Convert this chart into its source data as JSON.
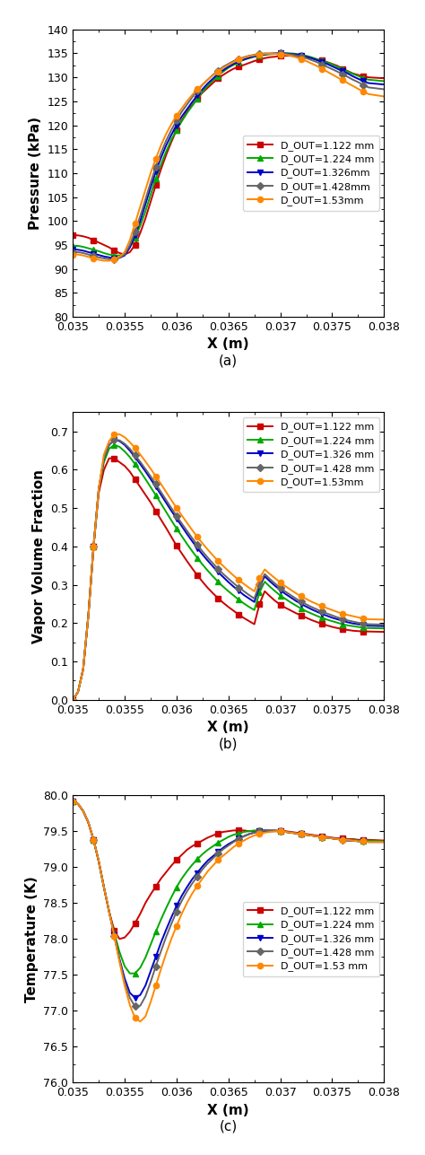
{
  "xlim": [
    0.035,
    0.038
  ],
  "xticks": [
    0.035,
    0.0355,
    0.036,
    0.0365,
    0.037,
    0.0375,
    0.038
  ],
  "xlabel": "X (m)",
  "colors": [
    "#cc0000",
    "#00aa00",
    "#0000cc",
    "#666666",
    "#ff8800"
  ],
  "markers": [
    "s",
    "^",
    "v",
    "D",
    "o"
  ],
  "plot_a_ylabel": "Pressure (kPa)",
  "plot_a_ylim": [
    80,
    140
  ],
  "plot_a_yticks": [
    80,
    85,
    90,
    95,
    100,
    105,
    110,
    115,
    120,
    125,
    130,
    135,
    140
  ],
  "plot_a_label": "(a)",
  "plot_b_ylabel": "Vapor Volume Fraction",
  "plot_b_ylim": [
    0,
    0.75
  ],
  "plot_b_yticks": [
    0,
    0.1,
    0.2,
    0.3,
    0.4,
    0.5,
    0.6,
    0.7
  ],
  "plot_b_label": "(b)",
  "plot_c_ylabel": "Temperature (K)",
  "plot_c_ylim": [
    76,
    80
  ],
  "plot_c_yticks": [
    76,
    76.5,
    77,
    77.5,
    78,
    78.5,
    79,
    79.5,
    80
  ],
  "plot_c_label": "(c)",
  "legend_labels_a": [
    "D_OUT=1.122 mm",
    "D_OUT=1.224 mm",
    "D_OUT=1.326mm",
    "D_OUT=1.428mm",
    "D_OUT=1.53mm"
  ],
  "legend_labels_b": [
    "D_OUT=1.122 mm",
    "D_OUT=1.224 mm",
    "D_OUT=1.326 mm",
    "D_OUT=1.428 mm",
    "D_OUT=1.53mm"
  ],
  "legend_labels_c": [
    "D_OUT=1.122 mm",
    "D_OUT=1.224 mm",
    "D_OUT=1.326 mm",
    "D_OUT=1.428 mm",
    "D_OUT=1.53 mm"
  ],
  "x_common": [
    0.035,
    0.03505,
    0.0351,
    0.03515,
    0.0352,
    0.03525,
    0.0353,
    0.03535,
    0.0354,
    0.03545,
    0.0355,
    0.03555,
    0.0356,
    0.03565,
    0.0357,
    0.03575,
    0.0358,
    0.03585,
    0.0359,
    0.03595,
    0.036,
    0.03605,
    0.0361,
    0.03615,
    0.0362,
    0.03625,
    0.0363,
    0.03635,
    0.0364,
    0.03645,
    0.0365,
    0.03655,
    0.0366,
    0.03665,
    0.0367,
    0.03675,
    0.0368,
    0.03685,
    0.0369,
    0.03695,
    0.037,
    0.03705,
    0.0371,
    0.03715,
    0.0372,
    0.03725,
    0.0373,
    0.03735,
    0.0374,
    0.03745,
    0.0375,
    0.03755,
    0.0376,
    0.03765,
    0.0377,
    0.03775,
    0.0378,
    0.03785,
    0.038
  ],
  "pa_y1": [
    97.0,
    97.0,
    96.8,
    96.5,
    96.0,
    95.5,
    95.0,
    94.5,
    93.8,
    93.3,
    93.0,
    93.5,
    95.0,
    97.5,
    100.5,
    104.0,
    107.5,
    110.8,
    113.8,
    116.5,
    119.0,
    121.0,
    122.8,
    124.2,
    125.5,
    126.8,
    127.8,
    128.8,
    129.8,
    130.5,
    131.2,
    131.8,
    132.2,
    132.6,
    133.0,
    133.4,
    133.7,
    134.0,
    134.2,
    134.3,
    134.5,
    134.5,
    134.5,
    134.4,
    134.3,
    134.2,
    134.0,
    133.8,
    133.5,
    133.2,
    132.8,
    132.4,
    131.8,
    131.3,
    130.8,
    130.5,
    130.2,
    130.0,
    129.8
  ],
  "pa_y2": [
    94.8,
    94.8,
    94.6,
    94.3,
    94.0,
    93.7,
    93.3,
    93.0,
    92.8,
    92.8,
    93.0,
    94.5,
    96.5,
    99.0,
    102.0,
    105.5,
    108.8,
    111.8,
    114.5,
    117.0,
    119.0,
    120.8,
    122.5,
    124.0,
    125.5,
    127.0,
    128.2,
    129.3,
    130.3,
    131.2,
    132.0,
    132.6,
    133.2,
    133.7,
    134.0,
    134.3,
    134.5,
    134.7,
    134.8,
    134.9,
    135.0,
    135.0,
    135.0,
    134.9,
    134.7,
    134.5,
    134.2,
    133.8,
    133.5,
    133.1,
    132.7,
    132.2,
    131.7,
    131.2,
    130.7,
    130.3,
    129.8,
    129.5,
    129.2
  ],
  "pa_y3": [
    94.0,
    94.0,
    93.8,
    93.5,
    93.2,
    92.9,
    92.6,
    92.4,
    92.2,
    92.3,
    92.8,
    94.5,
    97.0,
    100.0,
    103.5,
    107.0,
    110.3,
    113.2,
    115.8,
    118.0,
    120.0,
    121.8,
    123.3,
    124.8,
    126.2,
    127.5,
    128.7,
    129.7,
    130.7,
    131.5,
    132.2,
    132.8,
    133.3,
    133.7,
    134.1,
    134.4,
    134.6,
    134.8,
    134.9,
    135.0,
    135.0,
    135.0,
    134.9,
    134.8,
    134.6,
    134.3,
    134.0,
    133.6,
    133.2,
    132.8,
    132.3,
    131.8,
    131.3,
    130.8,
    130.2,
    129.7,
    129.2,
    128.8,
    128.5
  ],
  "pa_y4": [
    93.5,
    93.5,
    93.3,
    93.0,
    92.7,
    92.4,
    92.2,
    92.0,
    92.0,
    92.3,
    93.0,
    95.0,
    97.8,
    101.0,
    104.5,
    108.0,
    111.3,
    114.2,
    116.8,
    119.0,
    121.0,
    122.8,
    124.3,
    125.8,
    127.2,
    128.4,
    129.5,
    130.5,
    131.4,
    132.2,
    132.8,
    133.4,
    133.8,
    134.2,
    134.5,
    134.7,
    134.9,
    135.0,
    135.0,
    135.0,
    135.0,
    134.9,
    134.8,
    134.6,
    134.3,
    134.0,
    133.6,
    133.2,
    132.7,
    132.2,
    131.7,
    131.2,
    130.6,
    130.1,
    129.5,
    129.0,
    128.4,
    127.9,
    127.5
  ],
  "pa_y5": [
    93.0,
    93.0,
    92.8,
    92.5,
    92.2,
    91.9,
    91.7,
    91.7,
    92.0,
    92.5,
    93.5,
    96.0,
    99.5,
    103.0,
    106.5,
    110.0,
    113.0,
    115.8,
    118.2,
    120.2,
    122.0,
    123.5,
    125.0,
    126.3,
    127.5,
    128.5,
    129.5,
    130.4,
    131.2,
    132.0,
    132.6,
    133.2,
    133.7,
    134.1,
    134.4,
    134.6,
    134.8,
    134.9,
    134.9,
    134.9,
    134.8,
    134.7,
    134.5,
    134.2,
    133.8,
    133.4,
    132.9,
    132.4,
    131.8,
    131.2,
    130.6,
    130.0,
    129.4,
    128.8,
    128.2,
    127.6,
    127.0,
    126.5,
    126.0
  ],
  "pb_y1": [
    0.0,
    0.02,
    0.08,
    0.22,
    0.4,
    0.54,
    0.6,
    0.63,
    0.63,
    0.62,
    0.61,
    0.595,
    0.575,
    0.555,
    0.535,
    0.515,
    0.492,
    0.47,
    0.448,
    0.425,
    0.402,
    0.382,
    0.362,
    0.343,
    0.325,
    0.308,
    0.292,
    0.278,
    0.265,
    0.253,
    0.242,
    0.232,
    0.222,
    0.213,
    0.205,
    0.197,
    0.25,
    0.283,
    0.27,
    0.258,
    0.248,
    0.24,
    0.233,
    0.226,
    0.22,
    0.214,
    0.208,
    0.203,
    0.198,
    0.194,
    0.19,
    0.187,
    0.184,
    0.182,
    0.18,
    0.179,
    0.178,
    0.178,
    0.177
  ],
  "pb_y2": [
    0.0,
    0.02,
    0.08,
    0.22,
    0.4,
    0.55,
    0.62,
    0.655,
    0.665,
    0.66,
    0.648,
    0.633,
    0.615,
    0.596,
    0.576,
    0.555,
    0.534,
    0.512,
    0.49,
    0.468,
    0.447,
    0.427,
    0.407,
    0.388,
    0.37,
    0.353,
    0.337,
    0.322,
    0.308,
    0.295,
    0.283,
    0.272,
    0.261,
    0.251,
    0.242,
    0.234,
    0.28,
    0.308,
    0.295,
    0.283,
    0.272,
    0.263,
    0.254,
    0.246,
    0.238,
    0.231,
    0.225,
    0.219,
    0.214,
    0.209,
    0.205,
    0.201,
    0.197,
    0.194,
    0.192,
    0.19,
    0.188,
    0.187,
    0.186
  ],
  "pb_y3": [
    0.0,
    0.02,
    0.08,
    0.22,
    0.4,
    0.55,
    0.63,
    0.665,
    0.678,
    0.675,
    0.665,
    0.65,
    0.633,
    0.615,
    0.596,
    0.576,
    0.556,
    0.535,
    0.514,
    0.493,
    0.473,
    0.453,
    0.433,
    0.414,
    0.396,
    0.379,
    0.363,
    0.348,
    0.333,
    0.32,
    0.307,
    0.295,
    0.284,
    0.273,
    0.264,
    0.255,
    0.296,
    0.322,
    0.309,
    0.297,
    0.286,
    0.276,
    0.267,
    0.258,
    0.25,
    0.243,
    0.236,
    0.23,
    0.224,
    0.219,
    0.214,
    0.21,
    0.206,
    0.202,
    0.199,
    0.197,
    0.195,
    0.193,
    0.192
  ],
  "pb_y4": [
    0.0,
    0.02,
    0.08,
    0.22,
    0.4,
    0.55,
    0.63,
    0.665,
    0.678,
    0.677,
    0.668,
    0.655,
    0.638,
    0.621,
    0.602,
    0.583,
    0.563,
    0.542,
    0.521,
    0.5,
    0.48,
    0.46,
    0.441,
    0.422,
    0.404,
    0.387,
    0.371,
    0.356,
    0.342,
    0.328,
    0.316,
    0.304,
    0.293,
    0.283,
    0.273,
    0.264,
    0.302,
    0.328,
    0.315,
    0.303,
    0.292,
    0.282,
    0.273,
    0.264,
    0.256,
    0.249,
    0.242,
    0.236,
    0.23,
    0.225,
    0.22,
    0.215,
    0.211,
    0.207,
    0.204,
    0.201,
    0.199,
    0.197,
    0.196
  ],
  "pb_y5": [
    0.0,
    0.02,
    0.08,
    0.22,
    0.4,
    0.55,
    0.64,
    0.675,
    0.692,
    0.693,
    0.685,
    0.672,
    0.657,
    0.64,
    0.622,
    0.603,
    0.583,
    0.563,
    0.542,
    0.521,
    0.501,
    0.481,
    0.462,
    0.443,
    0.425,
    0.408,
    0.392,
    0.377,
    0.362,
    0.349,
    0.336,
    0.324,
    0.312,
    0.302,
    0.292,
    0.283,
    0.317,
    0.34,
    0.328,
    0.317,
    0.306,
    0.296,
    0.287,
    0.278,
    0.27,
    0.263,
    0.256,
    0.25,
    0.244,
    0.239,
    0.234,
    0.229,
    0.225,
    0.221,
    0.218,
    0.215,
    0.212,
    0.21,
    0.209
  ],
  "pc_y1": [
    79.92,
    79.88,
    79.78,
    79.62,
    79.38,
    79.08,
    78.72,
    78.38,
    78.12,
    78.0,
    78.02,
    78.1,
    78.22,
    78.35,
    78.5,
    78.62,
    78.73,
    78.84,
    78.93,
    79.02,
    79.1,
    79.17,
    79.24,
    79.29,
    79.33,
    79.37,
    79.41,
    79.44,
    79.47,
    79.49,
    79.5,
    79.51,
    79.51,
    79.51,
    79.5,
    79.5,
    79.5,
    79.5,
    79.5,
    79.5,
    79.5,
    79.5,
    79.49,
    79.48,
    79.47,
    79.46,
    79.45,
    79.44,
    79.43,
    79.42,
    79.41,
    79.4,
    79.4,
    79.39,
    79.39,
    79.38,
    79.38,
    79.38,
    79.37
  ],
  "pc_y2": [
    79.92,
    79.88,
    79.78,
    79.62,
    79.38,
    79.08,
    78.72,
    78.38,
    78.08,
    77.82,
    77.62,
    77.52,
    77.52,
    77.6,
    77.74,
    77.92,
    78.1,
    78.27,
    78.43,
    78.58,
    78.72,
    78.84,
    78.94,
    79.03,
    79.11,
    79.18,
    79.24,
    79.29,
    79.34,
    79.38,
    79.42,
    79.45,
    79.47,
    79.49,
    79.5,
    79.51,
    79.51,
    79.51,
    79.5,
    79.5,
    79.5,
    79.49,
    79.48,
    79.47,
    79.46,
    79.45,
    79.44,
    79.43,
    79.42,
    79.41,
    79.4,
    79.39,
    79.39,
    79.38,
    79.38,
    79.37,
    79.37,
    79.37,
    79.36
  ],
  "pc_y3": [
    79.92,
    79.88,
    79.78,
    79.62,
    79.38,
    79.08,
    78.72,
    78.38,
    78.05,
    77.72,
    77.45,
    77.25,
    77.18,
    77.22,
    77.35,
    77.55,
    77.75,
    77.95,
    78.13,
    78.3,
    78.46,
    78.6,
    78.72,
    78.83,
    78.92,
    79.01,
    79.09,
    79.15,
    79.21,
    79.27,
    79.32,
    79.36,
    79.4,
    79.43,
    79.46,
    79.48,
    79.5,
    79.51,
    79.51,
    79.51,
    79.5,
    79.49,
    79.48,
    79.47,
    79.46,
    79.45,
    79.44,
    79.43,
    79.42,
    79.41,
    79.4,
    79.39,
    79.38,
    79.37,
    79.37,
    79.36,
    79.36,
    79.35,
    79.35
  ],
  "pc_y4": [
    79.92,
    79.88,
    79.78,
    79.62,
    79.38,
    79.08,
    78.72,
    78.38,
    78.04,
    77.7,
    77.4,
    77.18,
    77.06,
    77.07,
    77.2,
    77.4,
    77.62,
    77.83,
    78.03,
    78.21,
    78.38,
    78.53,
    78.66,
    78.77,
    78.87,
    78.97,
    79.05,
    79.12,
    79.19,
    79.25,
    79.3,
    79.35,
    79.39,
    79.43,
    79.46,
    79.48,
    79.5,
    79.51,
    79.51,
    79.51,
    79.5,
    79.49,
    79.48,
    79.47,
    79.46,
    79.45,
    79.44,
    79.43,
    79.42,
    79.41,
    79.4,
    79.39,
    79.38,
    79.37,
    79.37,
    79.36,
    79.36,
    79.35,
    79.35
  ],
  "pc_y5": [
    79.92,
    79.88,
    79.78,
    79.62,
    79.38,
    79.08,
    78.72,
    78.38,
    78.04,
    77.68,
    77.35,
    77.08,
    76.9,
    76.85,
    76.92,
    77.12,
    77.35,
    77.58,
    77.8,
    78.0,
    78.18,
    78.35,
    78.5,
    78.63,
    78.74,
    78.84,
    78.94,
    79.02,
    79.1,
    79.16,
    79.22,
    79.28,
    79.33,
    79.37,
    79.41,
    79.44,
    79.46,
    79.48,
    79.49,
    79.5,
    79.5,
    79.49,
    79.48,
    79.47,
    79.46,
    79.45,
    79.44,
    79.43,
    79.42,
    79.41,
    79.4,
    79.39,
    79.38,
    79.38,
    79.37,
    79.36,
    79.36,
    79.35,
    79.35
  ]
}
